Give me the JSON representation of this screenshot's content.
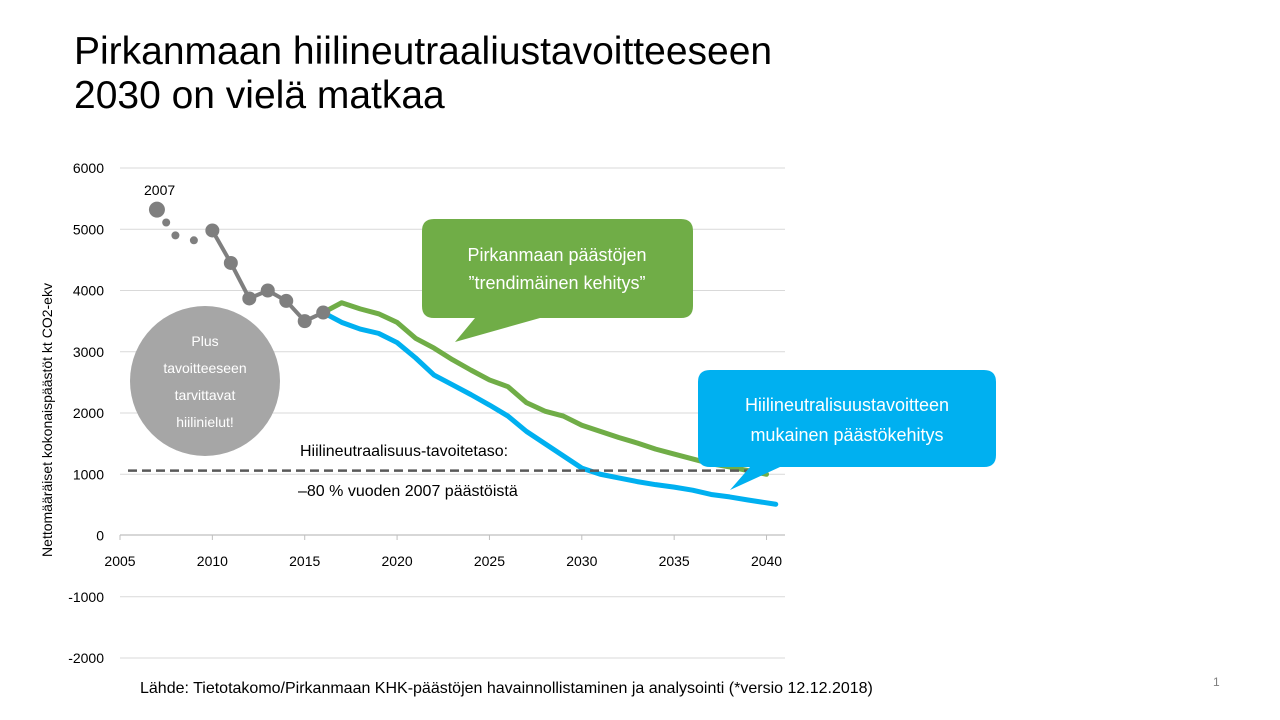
{
  "slide": {
    "title_lines": [
      "Pirkanmaan hiilineutraaliustavoitteeseen",
      "2030 on vielä matkaa"
    ],
    "source": "Lähde: Tietotakomo/Pirkanmaan KHK-päästöjen havainnollistaminen ja analysointi (*versio 12.12.2018)",
    "page_number": "1"
  },
  "chart_data": {
    "type": "line",
    "title": "",
    "xlabel": "",
    "ylabel": "Nettomääräiset kokonaispäästöt kt CO2-ekv",
    "xlim": [
      2005,
      2041
    ],
    "ylim": [
      -2000,
      6000
    ],
    "x_ticks": [
      "2005",
      "2010",
      "2015",
      "2020",
      "2025",
      "2030",
      "2035",
      "2040"
    ],
    "y_ticks": [
      "6000",
      "5000",
      "4000",
      "3000",
      "2000",
      "1000",
      "0",
      "-1000",
      "-2000"
    ],
    "grid": true,
    "series": [
      {
        "name": "historical",
        "color": "#7f7f7f",
        "x": [
          2010,
          2011,
          2012,
          2013,
          2014,
          2015,
          2016
        ],
        "y": [
          4980,
          4450,
          3870,
          4000,
          3830,
          3500,
          3640
        ]
      },
      {
        "name": "early_markers",
        "color": "#7f7f7f",
        "x": [
          2007,
          2007.5,
          2008,
          2009
        ],
        "y": [
          5320,
          5110,
          4900,
          4820
        ]
      },
      {
        "name": "Pirkanmaan päästöjen ”trendimäinen kehitys”",
        "color": "#70ad47",
        "x": [
          2016,
          2017,
          2018,
          2019,
          2020,
          2021,
          2022,
          2023,
          2024,
          2025,
          2026,
          2027,
          2028,
          2029,
          2030,
          2031,
          2032,
          2033,
          2034,
          2035,
          2036,
          2037,
          2038,
          2039,
          2040
        ],
        "y": [
          3640,
          3800,
          3700,
          3620,
          3480,
          3220,
          3060,
          2870,
          2700,
          2540,
          2430,
          2170,
          2030,
          1950,
          1800,
          1700,
          1600,
          1510,
          1410,
          1330,
          1250,
          1170,
          1120,
          1060,
          1000
        ]
      },
      {
        "name": "Hiilineutralisuustavoitteen mukainen päästökehitys",
        "color": "#00b0f0",
        "x": [
          2016,
          2017,
          2018,
          2019,
          2020,
          2021,
          2022,
          2023,
          2024,
          2025,
          2026,
          2027,
          2028,
          2029,
          2030,
          2031,
          2032,
          2033,
          2034,
          2035,
          2036,
          2037,
          2038,
          2039,
          2040.5
        ],
        "y": [
          3640,
          3480,
          3370,
          3300,
          3150,
          2900,
          2620,
          2460,
          2300,
          2130,
          1950,
          1700,
          1500,
          1300,
          1100,
          1000,
          940,
          880,
          830,
          790,
          740,
          670,
          630,
          580,
          510
        ]
      }
    ],
    "target_line": {
      "value": 1060,
      "label_lines": [
        "Hiilineutraalisuus-tavoitetaso:",
        "–80 % vuoden 2007 päästöistä"
      ]
    },
    "annotations": {
      "start_label": "2007",
      "circle_lines": [
        "Plus",
        "tavoitteeseen",
        "tarvittavat",
        "hiilinielut!"
      ],
      "green_callout_lines": [
        "Pirkanmaan päästöjen",
        "”trendimäinen kehitys”"
      ],
      "blue_callout_lines": [
        "Hiilineutralisuustavoitteen",
        "mukainen päästökehitys"
      ]
    }
  }
}
